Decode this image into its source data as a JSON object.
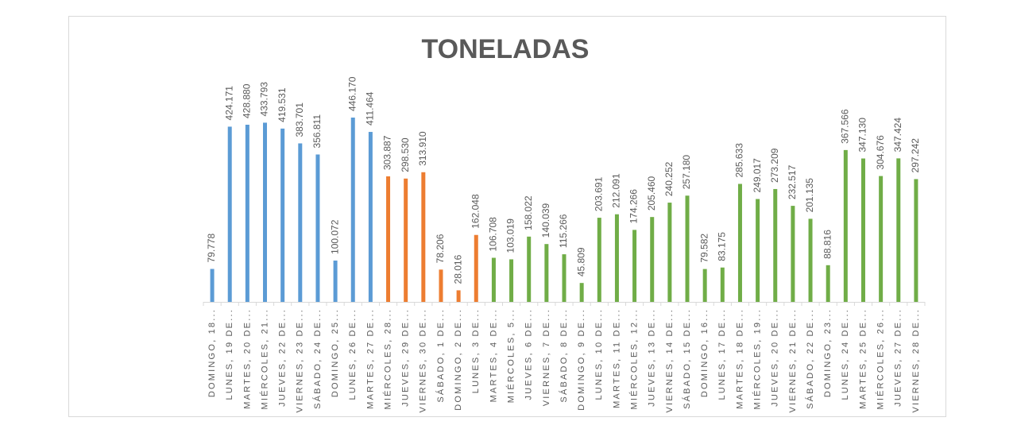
{
  "chart_data": {
    "type": "bar",
    "title": "TONELADAS",
    "categories": [
      "DOMINGO, 18...",
      "LUNES, 19 DE...",
      "MARTES, 20 DE...",
      "MIÉRCOLES, 21...",
      "JUEVES, 22 DE...",
      "VIERNES, 23 DE...",
      "SÁBADO, 24 DE...",
      "DOMINGO, 25...",
      "LUNES, 26 DE...",
      "MARTES, 27 DE...",
      "MIÉRCOLES, 28...",
      "JUEVES, 29 DE...",
      "VIERNES, 30 DE...",
      "SÁBADO, 1 DE...",
      "DOMINGO, 2 DE...",
      "LUNES, 3 DE...",
      "MARTES, 4 DE...",
      "MIÉRCOLES, 5...",
      "JUEVES, 6 DE...",
      "VIERNES, 7 DE...",
      "SÁBADO, 8 DE...",
      "DOMINGO, 9 DE...",
      "LUNES, 10 DE...",
      "MARTES, 11 DE...",
      "MIÉRCOLES, 12...",
      "JUEVES, 13 DE...",
      "VIERNES, 14 DE...",
      "SÁBADO, 15 DE...",
      "DOMINGO, 16...",
      "LUNES, 17 DE...",
      "MARTES, 18 DE...",
      "MIÉRCOLES, 19...",
      "JUEVES, 20 DE...",
      "VIERNES, 21 DE...",
      "SÁBADO, 22 DE...",
      "DOMINGO, 23...",
      "LUNES, 24 DE...",
      "MARTES, 25 DE...",
      "MIÉRCOLES, 26...",
      "JUEVES, 27 DE...",
      "VIERNES, 28 DE..."
    ],
    "values": [
      79778,
      424171,
      428880,
      433793,
      419531,
      383701,
      356811,
      100072,
      446170,
      411464,
      303887,
      298530,
      313910,
      78206,
      28016,
      162048,
      106708,
      103019,
      158022,
      140039,
      115266,
      45809,
      203691,
      212091,
      174266,
      205460,
      240252,
      257180,
      79582,
      83175,
      285633,
      249017,
      273209,
      232517,
      201135,
      88816,
      367566,
      347130,
      304676,
      347424,
      297242
    ],
    "value_labels": [
      "79.778",
      "424.171",
      "428.880",
      "433.793",
      "419.531",
      "383.701",
      "356.811",
      "100.072",
      "446.170",
      "411.464",
      "303.887",
      "298.530",
      "313.910",
      "78.206",
      "28.016",
      "162.048",
      "106.708",
      "103.019",
      "158.022",
      "140.039",
      "115.266",
      "45.809",
      "203.691",
      "212.091",
      "174.266",
      "205.460",
      "240.252",
      "257.180",
      "79.582",
      "83.175",
      "285.633",
      "249.017",
      "273.209",
      "232.517",
      "201.135",
      "88.816",
      "367.566",
      "347.130",
      "304.676",
      "347.424",
      "297.242"
    ],
    "colors": [
      "#5b9bd5",
      "#5b9bd5",
      "#5b9bd5",
      "#5b9bd5",
      "#5b9bd5",
      "#5b9bd5",
      "#5b9bd5",
      "#5b9bd5",
      "#5b9bd5",
      "#5b9bd5",
      "#ed7d31",
      "#ed7d31",
      "#ed7d31",
      "#ed7d31",
      "#ed7d31",
      "#ed7d31",
      "#70ad47",
      "#70ad47",
      "#70ad47",
      "#70ad47",
      "#70ad47",
      "#70ad47",
      "#70ad47",
      "#70ad47",
      "#70ad47",
      "#70ad47",
      "#70ad47",
      "#70ad47",
      "#70ad47",
      "#70ad47",
      "#70ad47",
      "#70ad47",
      "#70ad47",
      "#70ad47",
      "#70ad47",
      "#70ad47",
      "#70ad47",
      "#70ad47",
      "#70ad47",
      "#70ad47",
      "#70ad47"
    ]
  }
}
